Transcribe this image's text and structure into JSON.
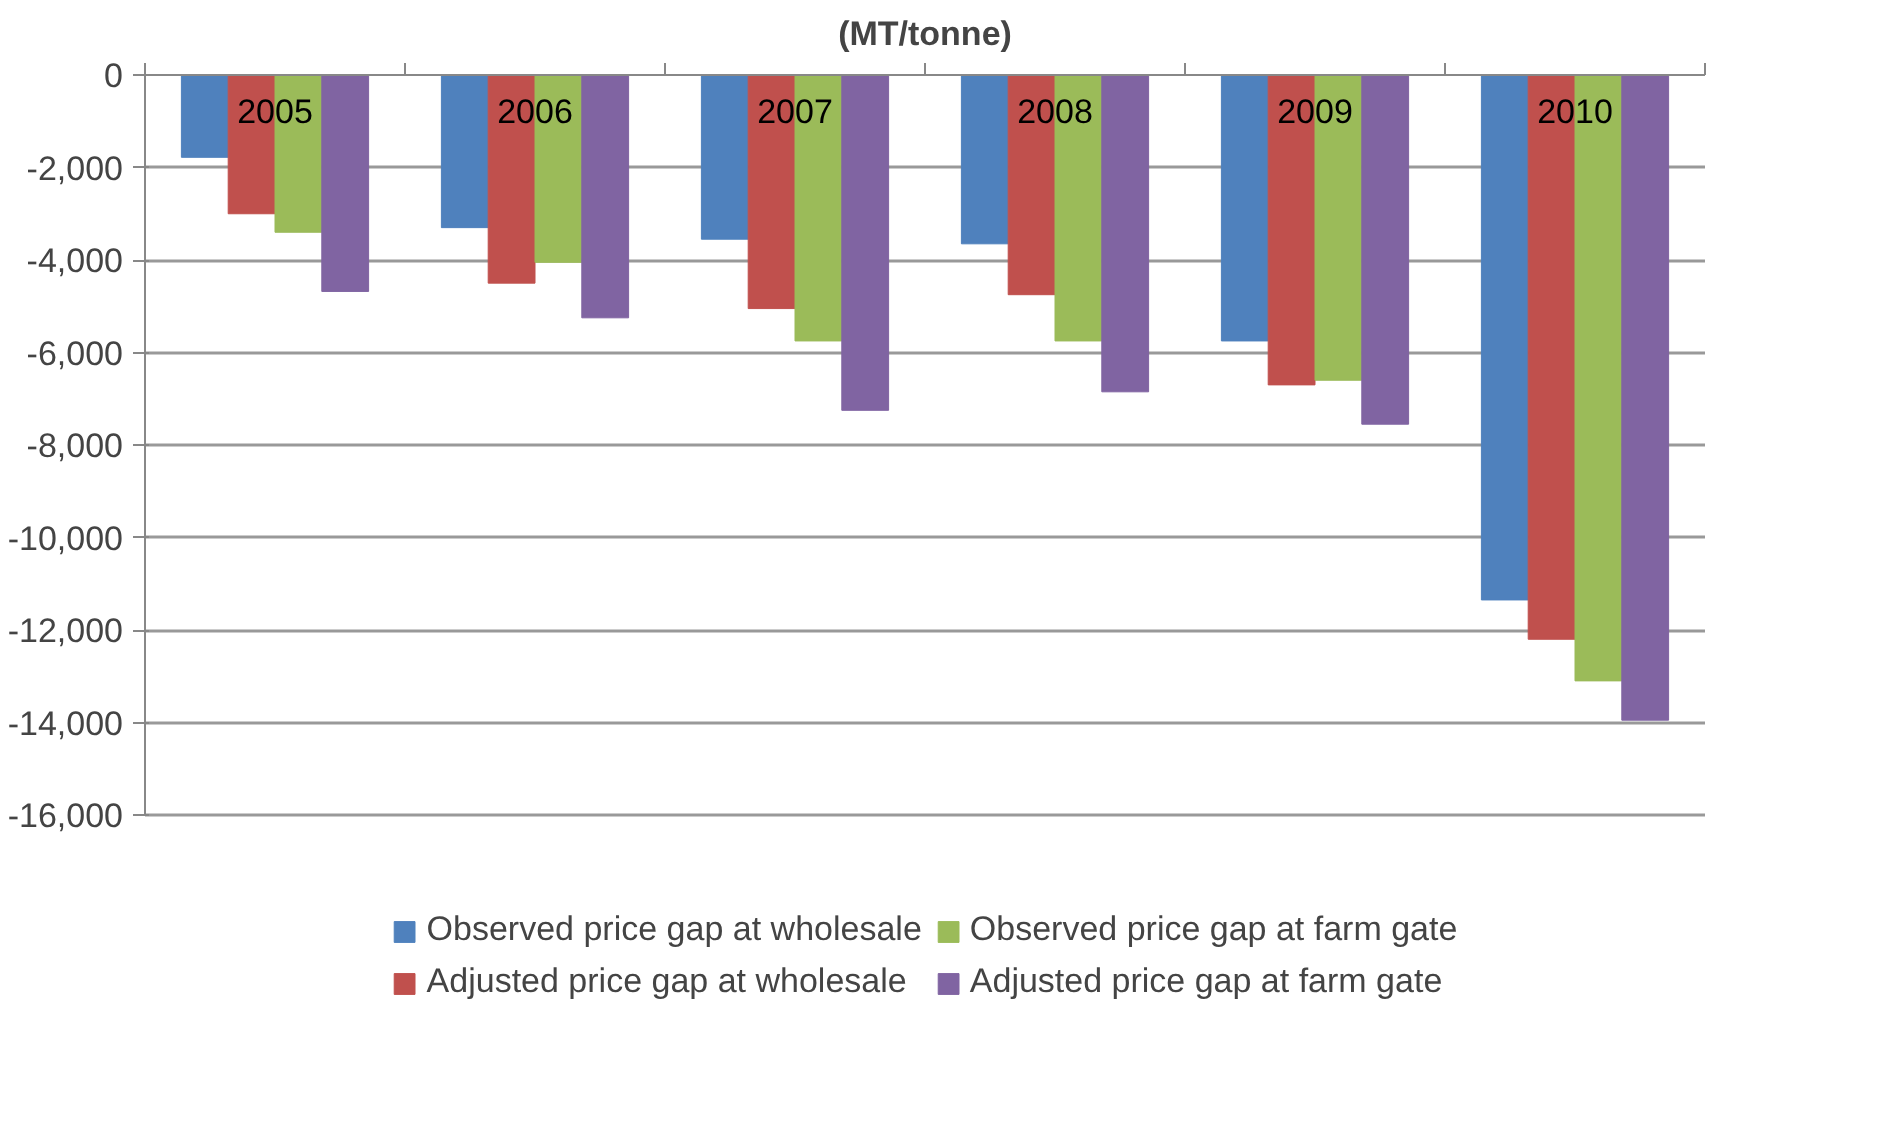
{
  "chart_data": {
    "type": "bar",
    "title": "(MT/tonne)",
    "categories": [
      "2005",
      "2006",
      "2007",
      "2008",
      "2009",
      "2010"
    ],
    "series": [
      {
        "name": "Observed price gap at wholesale",
        "color": "#4f81bd",
        "values": [
          -1780,
          -3300,
          -3550,
          -3650,
          -5750,
          -11350
        ]
      },
      {
        "name": "Adjusted price gap at wholesale",
        "color": "#c0504d",
        "values": [
          -3000,
          -4500,
          -5050,
          -4750,
          -6700,
          -12200
        ]
      },
      {
        "name": "Observed price gap at farm gate",
        "color": "#9bbb59",
        "values": [
          -3400,
          -4050,
          -5750,
          -5750,
          -6600,
          -13100
        ]
      },
      {
        "name": "Adjusted price gap at farm gate",
        "color": "#8064a2",
        "values": [
          -4680,
          -5250,
          -7250,
          -6850,
          -7550,
          -13950
        ]
      }
    ],
    "ylim": [
      -16000,
      0
    ],
    "yticks": [
      {
        "value": 0,
        "label": "0"
      },
      {
        "value": -2000,
        "label": "-2,000"
      },
      {
        "value": -4000,
        "label": "-4,000"
      },
      {
        "value": -6000,
        "label": "-6,000"
      },
      {
        "value": -8000,
        "label": "-8,000"
      },
      {
        "value": -10000,
        "label": "-10,000"
      },
      {
        "value": -12000,
        "label": "-12,000"
      },
      {
        "value": -14000,
        "label": "-14,000"
      },
      {
        "value": -16000,
        "label": "-16,000"
      }
    ],
    "grid": "y",
    "legend": "bottom"
  }
}
